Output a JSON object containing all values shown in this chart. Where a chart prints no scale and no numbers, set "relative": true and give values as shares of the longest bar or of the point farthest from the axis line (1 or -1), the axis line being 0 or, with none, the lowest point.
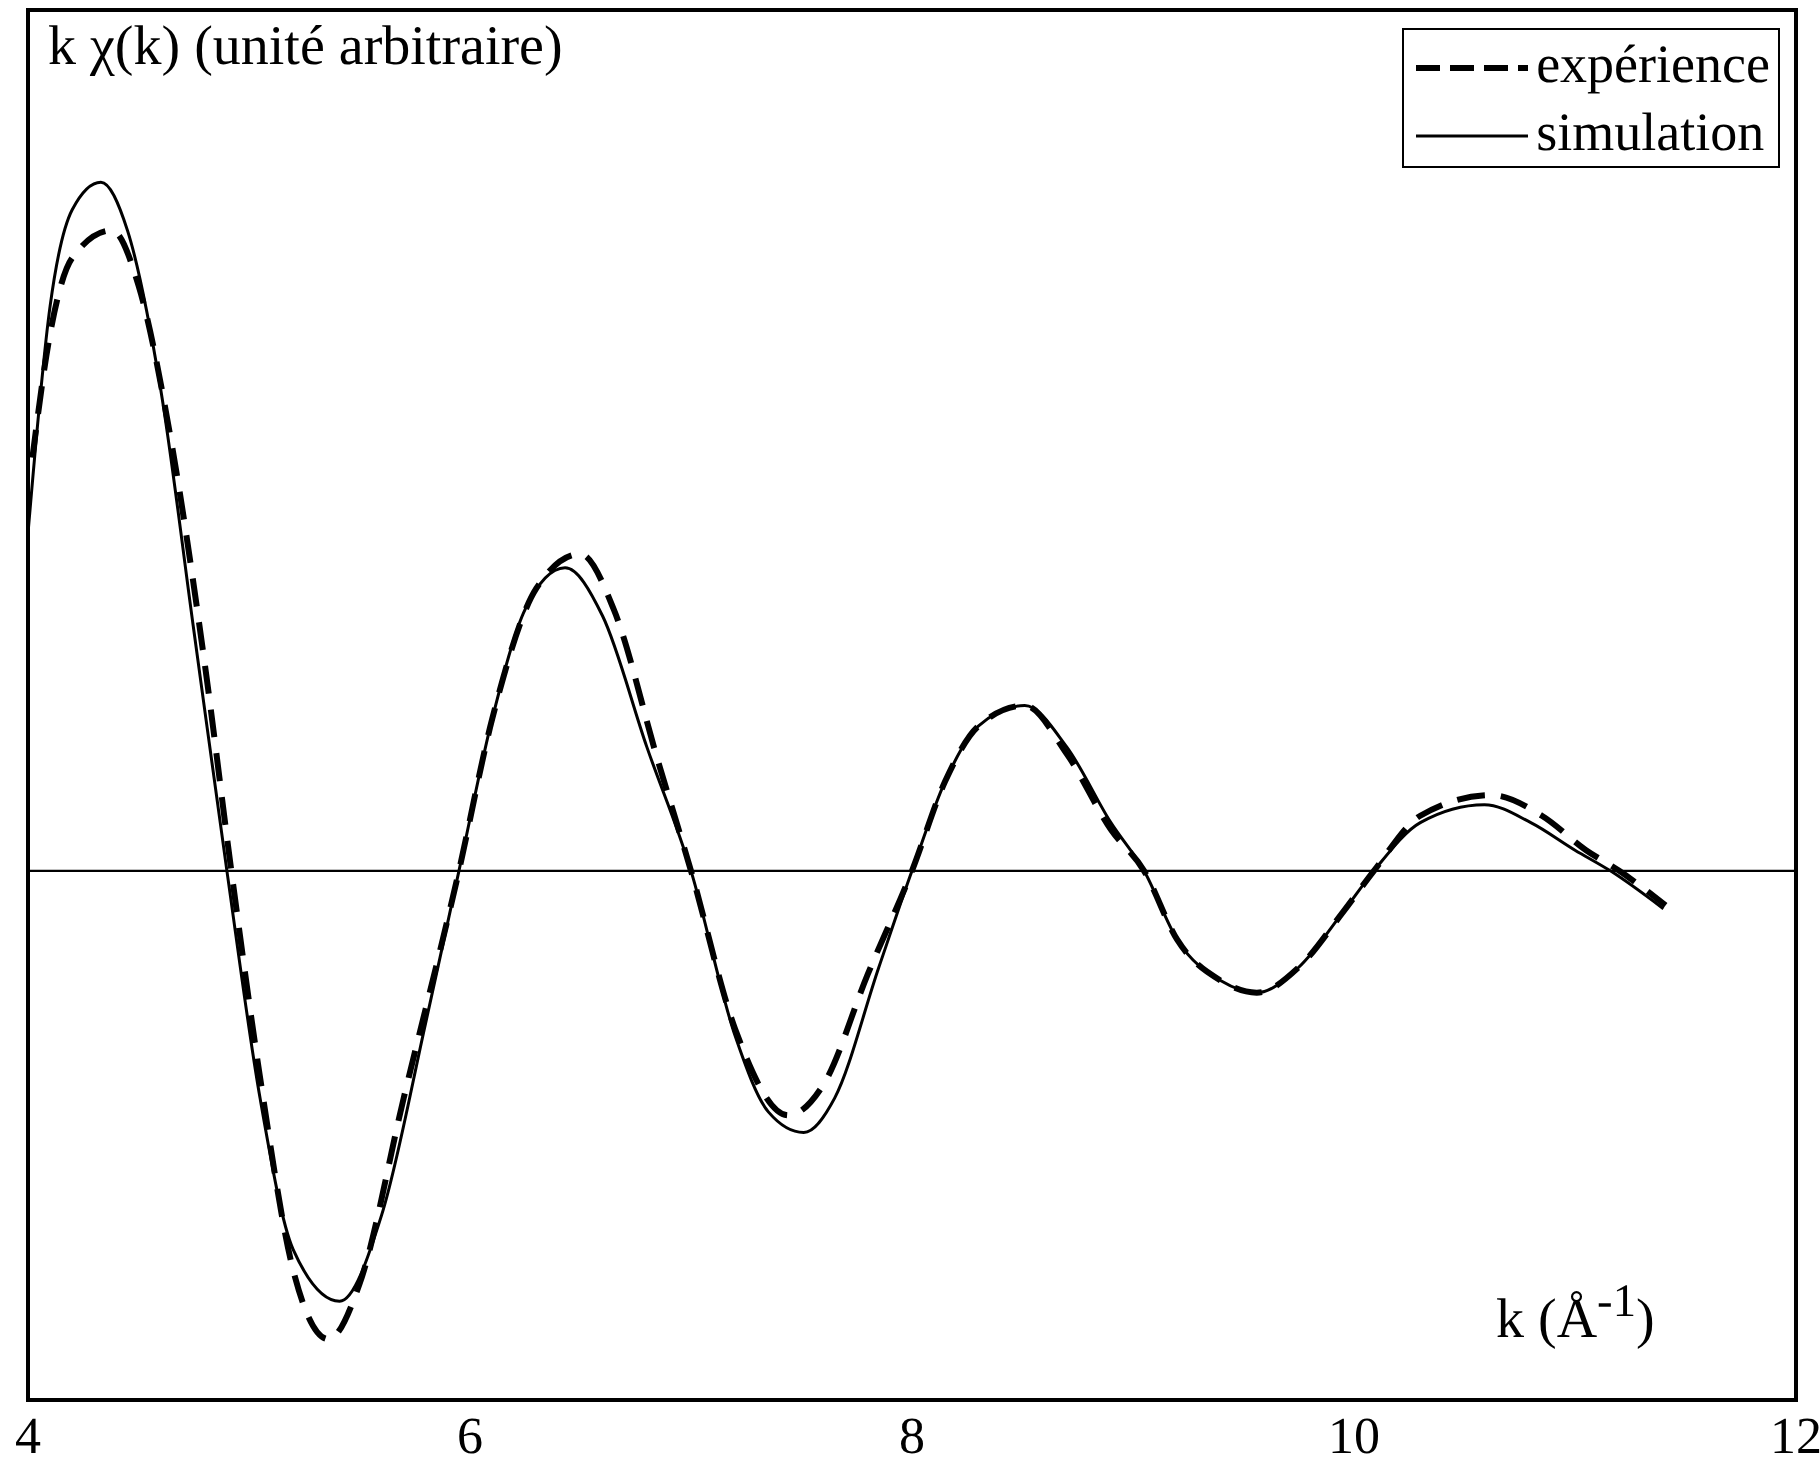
{
  "chart_data": {
    "type": "line",
    "title": "k χ(k) (unité arbitraire)",
    "xlabel": "k (Å$^{-1}$)",
    "relative": true,
    "xlim": [
      4,
      12
    ],
    "xticks": [
      4,
      6,
      8,
      10,
      12
    ],
    "legend": "top right",
    "grid": false,
    "marker": "none",
    "series": [
      {
        "name": "expérience",
        "color": "#000000",
        "line_style": "dashed",
        "x": [
          4.02,
          4.1,
          4.2,
          4.38,
          4.5,
          4.65,
          4.8,
          4.92,
          5.05,
          5.2,
          5.36,
          5.5,
          5.7,
          5.95,
          6.1,
          6.3,
          6.5,
          6.65,
          6.85,
          7.0,
          7.2,
          7.44,
          7.6,
          7.8,
          8.0,
          8.15,
          8.3,
          8.51,
          8.7,
          8.9,
          9.05,
          9.2,
          9.4,
          9.56,
          9.75,
          9.95,
          10.09,
          10.3,
          10.62,
          10.85,
          11.05,
          11.2,
          11.41
        ],
        "values": [
          0.6,
          0.78,
          0.89,
          0.93,
          0.85,
          0.62,
          0.3,
          0,
          -0.3,
          -0.58,
          -0.68,
          -0.6,
          -0.33,
          0,
          0.22,
          0.41,
          0.46,
          0.38,
          0.16,
          0,
          -0.23,
          -0.355,
          -0.31,
          -0.15,
          0,
          0.13,
          0.21,
          0.24,
          0.17,
          0.06,
          0,
          -0.1,
          -0.16,
          -0.177,
          -0.14,
          -0.06,
          0,
          0.08,
          0.11,
          0.08,
          0.03,
          0,
          -0.05
        ]
      },
      {
        "name": "simulation",
        "color": "#000000",
        "line_style": "solid",
        "x": [
          4.0,
          4.1,
          4.2,
          4.33,
          4.45,
          4.6,
          4.75,
          4.9,
          5.05,
          5.2,
          5.41,
          5.6,
          5.8,
          5.95,
          6.1,
          6.25,
          6.43,
          6.6,
          6.8,
          7.0,
          7.2,
          7.35,
          7.51,
          7.65,
          7.85,
          8.0,
          8.15,
          8.3,
          8.51,
          8.7,
          8.9,
          9.05,
          9.2,
          9.4,
          9.56,
          9.75,
          9.95,
          10.09,
          10.3,
          10.59,
          10.8,
          11.0,
          11.16,
          11.4
        ],
        "values": [
          0.49,
          0.82,
          0.96,
          1,
          0.93,
          0.7,
          0.35,
          0,
          -0.33,
          -0.55,
          -0.625,
          -0.5,
          -0.22,
          0,
          0.22,
          0.38,
          0.44,
          0.37,
          0.18,
          0,
          -0.24,
          -0.35,
          -0.38,
          -0.33,
          -0.14,
          0,
          0.13,
          0.21,
          0.24,
          0.18,
          0.07,
          0,
          -0.1,
          -0.16,
          -0.177,
          -0.14,
          -0.06,
          0,
          0.07,
          0.096,
          0.07,
          0.03,
          0,
          -0.055
        ]
      }
    ]
  }
}
